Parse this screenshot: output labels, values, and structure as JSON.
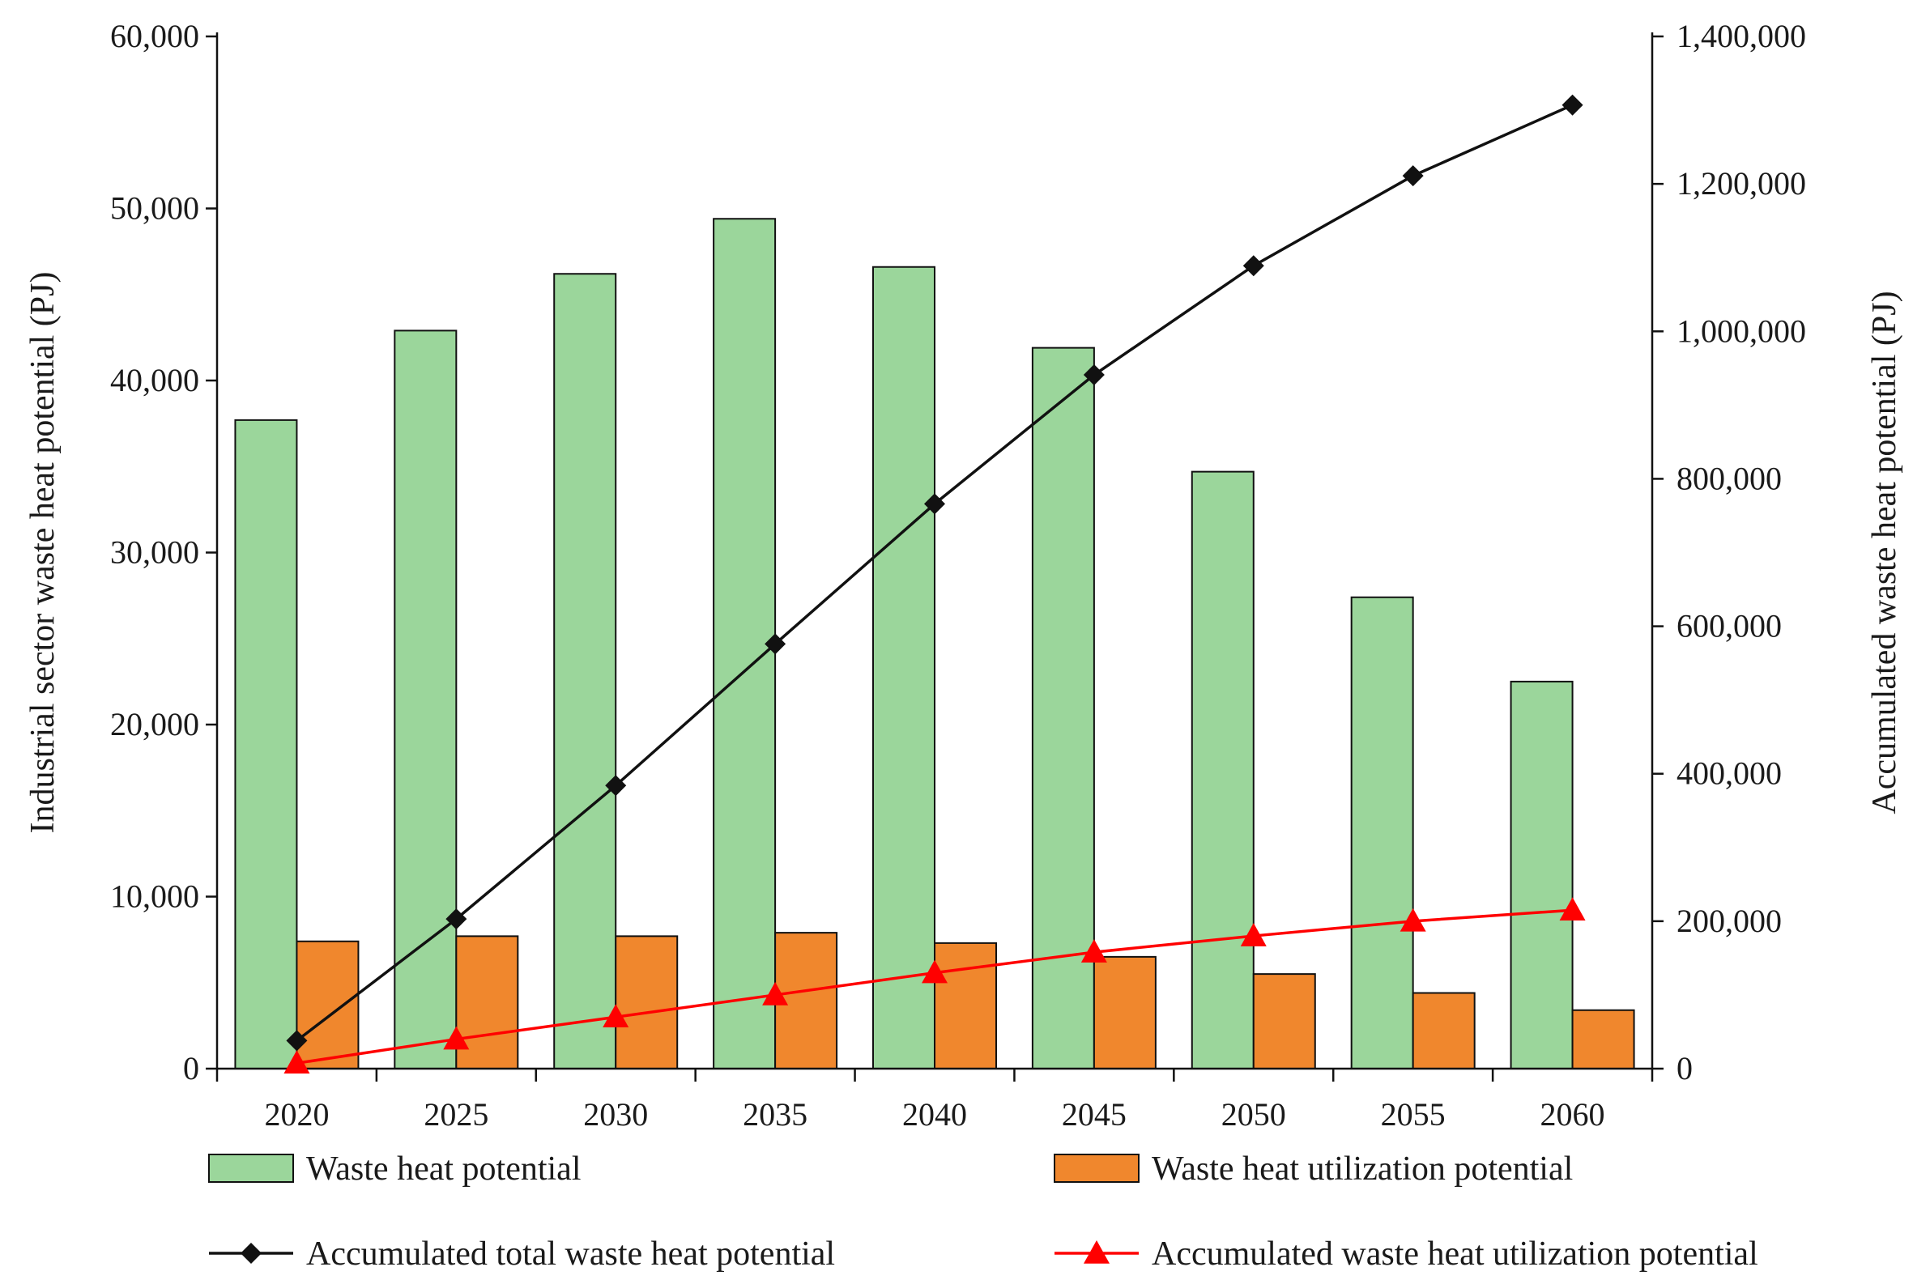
{
  "chart_data": {
    "type": "bar",
    "categories": [
      "2020",
      "2025",
      "2030",
      "2035",
      "2040",
      "2045",
      "2050",
      "2055",
      "2060"
    ],
    "series": [
      {
        "name": "Waste heat potential",
        "kind": "bar",
        "axis": "left",
        "color": "#9bd69b",
        "values": [
          37700,
          42900,
          46200,
          49400,
          46600,
          41900,
          34700,
          27400,
          22500
        ]
      },
      {
        "name": "Waste heat utilization potential",
        "kind": "bar",
        "axis": "left",
        "color": "#f0872d",
        "values": [
          7400,
          7700,
          7700,
          7900,
          7300,
          6500,
          5500,
          4400,
          3400
        ]
      },
      {
        "name": "Accumulated total waste heat potential",
        "kind": "line",
        "marker": "diamond",
        "axis": "right",
        "color": "#111111",
        "values": [
          38000,
          203000,
          384000,
          576000,
          766000,
          941000,
          1089000,
          1211000,
          1307000
        ]
      },
      {
        "name": "Accumulated waste heat utilization potential",
        "kind": "line",
        "marker": "triangle",
        "axis": "right",
        "color": "#ff0000",
        "values": [
          7400,
          40000,
          70000,
          100000,
          130000,
          158000,
          180000,
          200000,
          215000
        ]
      }
    ],
    "title": "",
    "xlabel": "",
    "ylabel": "Industrial sector waste heat potential (PJ)",
    "ylabel_right": "Accumulated waste heat potential (PJ)",
    "ylim": [
      0,
      60000
    ],
    "ylim_right": [
      0,
      1400000
    ],
    "yticks": [
      "0",
      "10,000",
      "20,000",
      "30,000",
      "40,000",
      "50,000",
      "60,000"
    ],
    "yticks_right": [
      "0",
      "200,000",
      "400,000",
      "600,000",
      "800,000",
      "1,000,000",
      "1,200,000",
      "1,400,000"
    ],
    "grid": false,
    "legend_position": "bottom"
  }
}
